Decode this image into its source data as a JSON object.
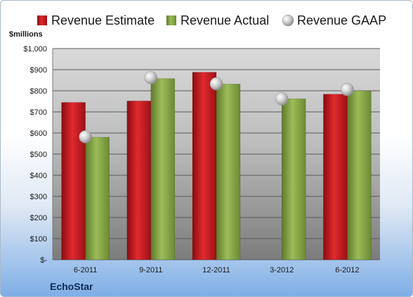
{
  "chart_data": {
    "type": "bar",
    "ylabel": "$millions",
    "ylim": [
      0,
      1000
    ],
    "y_ticks": [
      "$-",
      "$100",
      "$200",
      "$300",
      "$400",
      "$500",
      "$600",
      "$700",
      "$800",
      "$900",
      "$1,000"
    ],
    "categories": [
      "6-2011",
      "9-2011",
      "12-2011",
      "3-2012",
      "6-2012"
    ],
    "series": [
      {
        "name": "Revenue Estimate",
        "kind": "bar",
        "color": "#c3141a",
        "values": [
          745,
          752,
          888,
          null,
          784
        ]
      },
      {
        "name": "Revenue Actual",
        "kind": "bar",
        "color": "#8aa84a",
        "values": [
          580,
          858,
          832,
          762,
          800
        ]
      },
      {
        "name": "Revenue GAAP",
        "kind": "marker",
        "color": "#c8c8c8",
        "values": [
          582,
          862,
          833,
          762,
          806
        ]
      }
    ],
    "legend_position": "top",
    "grid": true,
    "footer_label": "EchoStar"
  }
}
